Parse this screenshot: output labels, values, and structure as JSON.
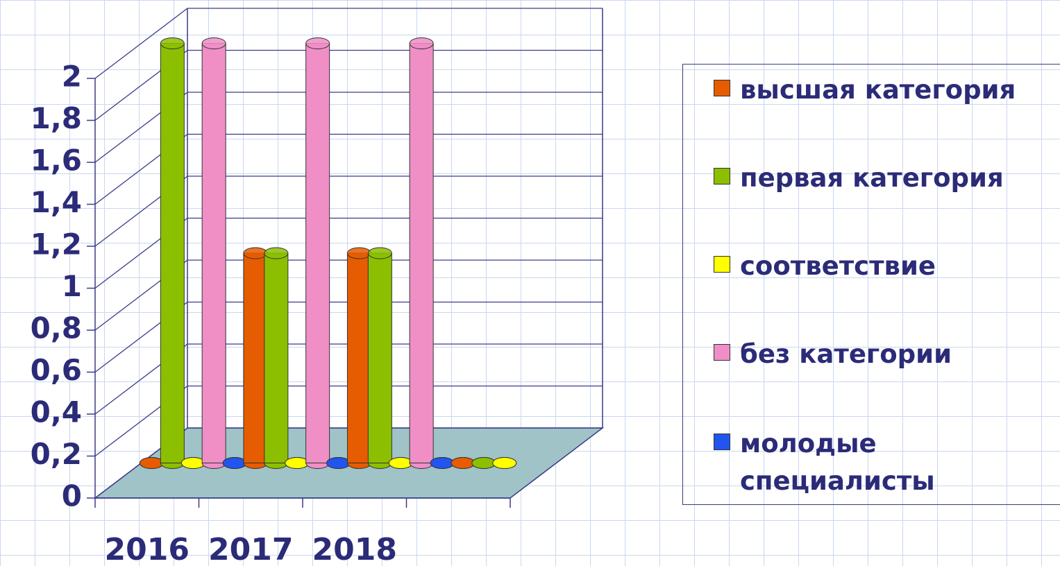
{
  "chart_data": {
    "type": "bar3d",
    "categories": [
      "2016",
      "2017",
      "2018",
      null
    ],
    "series": [
      {
        "name": "высшая категория",
        "color": "#e65c00",
        "values": [
          0,
          1,
          1,
          0
        ]
      },
      {
        "name": "первая категория",
        "color": "#8cbf00",
        "values": [
          2,
          1,
          1,
          0
        ]
      },
      {
        "name": "соответствие",
        "color": "#ffff00",
        "values": [
          0,
          0,
          0,
          0
        ]
      },
      {
        "name": "без категории",
        "color": "#ef8fc6",
        "values": [
          2,
          2,
          2,
          null
        ]
      },
      {
        "name": "молодые специалисты",
        "color": "#2255ee",
        "values": [
          0,
          0,
          0,
          null
        ]
      }
    ],
    "ylim": [
      0,
      2
    ],
    "yticks": [
      0,
      {
        "value": 0.2,
        "label": "0,2"
      },
      {
        "value": 0.4,
        "label": "0,4"
      },
      {
        "value": 0.6,
        "label": "0,6"
      },
      {
        "value": 0.8,
        "label": "0,8"
      },
      1,
      {
        "value": 1.2,
        "label": "1,2"
      },
      {
        "value": 1.4,
        "label": "1,4"
      },
      {
        "value": 1.6,
        "label": "1,6"
      },
      {
        "value": 1.8,
        "label": "1,8"
      },
      2
    ],
    "grid": true,
    "legend": "right",
    "floor_color": "#9fc3c6"
  }
}
